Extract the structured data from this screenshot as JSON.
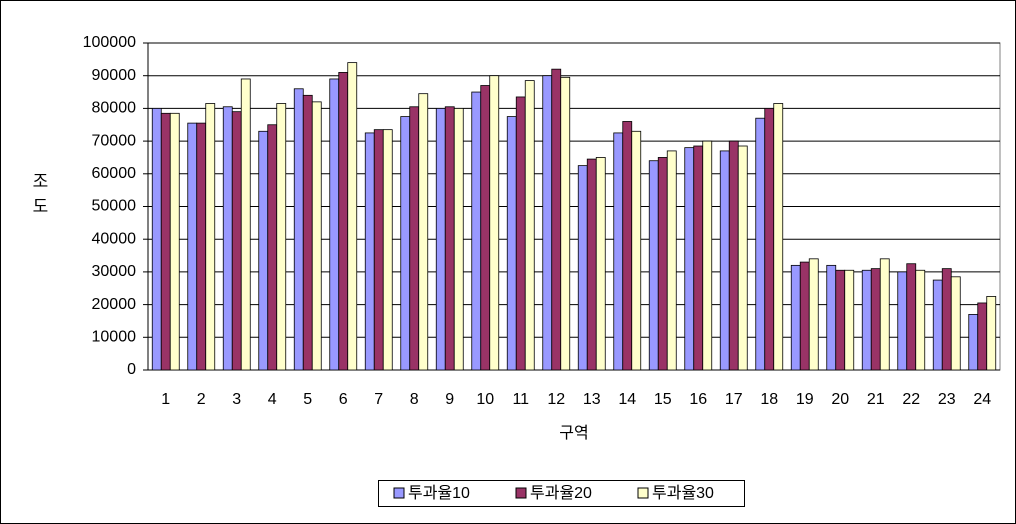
{
  "chart_data": {
    "type": "bar",
    "xlabel": "구역",
    "ylabel": "조도",
    "categories": [
      "1",
      "2",
      "3",
      "4",
      "5",
      "6",
      "7",
      "8",
      "9",
      "10",
      "11",
      "12",
      "13",
      "14",
      "15",
      "16",
      "17",
      "18",
      "19",
      "20",
      "21",
      "22",
      "23",
      "24"
    ],
    "series": [
      {
        "name": "투과율10",
        "color": "#9999ff",
        "values": [
          80000,
          75500,
          80500,
          73000,
          86000,
          89000,
          72500,
          77500,
          80000,
          85000,
          77500,
          90000,
          62500,
          72500,
          64000,
          68000,
          67000,
          77000,
          32000,
          32000,
          30500,
          30000,
          27500,
          17000
        ]
      },
      {
        "name": "투과율20",
        "color": "#993366",
        "values": [
          78500,
          75500,
          79000,
          75000,
          84000,
          91000,
          73500,
          80500,
          80500,
          87000,
          83500,
          92000,
          64500,
          76000,
          65000,
          68500,
          70000,
          80000,
          33000,
          30500,
          31000,
          32500,
          31000,
          20500
        ]
      },
      {
        "name": "투과율30",
        "color": "#ffffcc",
        "values": [
          78500,
          81500,
          89000,
          81500,
          82000,
          94000,
          73500,
          84500,
          80000,
          90000,
          88500,
          89500,
          65000,
          73000,
          67000,
          70000,
          68500,
          81500,
          34000,
          30500,
          34000,
          30500,
          28500,
          22500
        ]
      }
    ],
    "ylim": [
      0,
      100000
    ],
    "yticks": [
      0,
      10000,
      20000,
      30000,
      40000,
      50000,
      60000,
      70000,
      80000,
      90000,
      100000
    ],
    "grid": true,
    "legend": "bottom"
  }
}
